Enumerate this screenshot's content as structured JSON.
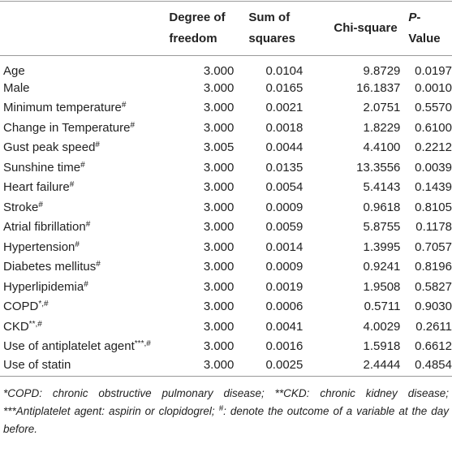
{
  "table": {
    "header": [
      "",
      "Degree of freedom",
      "Sum of squares",
      "Chi-square",
      "P-Value"
    ],
    "rows": [
      {
        "label": "Age",
        "sup": null,
        "values": [
          "3.000",
          "0.0104",
          "9.8729",
          "0.0197"
        ]
      },
      {
        "label": "Male",
        "sup": null,
        "values": [
          "3.000",
          "0.0165",
          "16.1837",
          "0.0010"
        ]
      },
      {
        "label": "Minimum temperature",
        "sup": "#",
        "values": [
          "3.000",
          "0.0021",
          "2.0751",
          "0.5570"
        ]
      },
      {
        "label": "Change in Temperature",
        "sup": "#",
        "values": [
          "3.000",
          "0.0018",
          "1.8229",
          "0.6100"
        ]
      },
      {
        "label": "Gust peak speed",
        "sup": "#",
        "values": [
          "3.005",
          "0.0044",
          "4.4100",
          "0.2212"
        ]
      },
      {
        "label": "Sunshine time",
        "sup": "#",
        "values": [
          "3.000",
          "0.0135",
          "13.3556",
          "0.0039"
        ]
      },
      {
        "label": "Heart failure",
        "sup": "#",
        "values": [
          "3.000",
          "0.0054",
          "5.4143",
          "0.1439"
        ]
      },
      {
        "label": "Stroke",
        "sup": "#",
        "values": [
          "3.000",
          "0.0009",
          "0.9618",
          "0.8105"
        ]
      },
      {
        "label": "Atrial fibrillation",
        "sup": "#",
        "values": [
          "3.000",
          "0.0059",
          "5.8755",
          "0.1178"
        ]
      },
      {
        "label": "Hypertension",
        "sup": "#",
        "values": [
          "3.000",
          "0.0014",
          "1.3995",
          "0.7057"
        ]
      },
      {
        "label": "Diabetes mellitus",
        "sup": "#",
        "values": [
          "3.000",
          "0.0009",
          "0.9241",
          "0.8196"
        ]
      },
      {
        "label": "Hyperlipidemia",
        "sup": "#",
        "values": [
          "3.000",
          "0.0019",
          "1.9508",
          "0.5827"
        ]
      },
      {
        "label": "COPD",
        "sup": "*,#",
        "values": [
          "3.000",
          "0.0006",
          "0.5711",
          "0.9030"
        ]
      },
      {
        "label": "CKD",
        "sup": "**,#",
        "values": [
          "3.000",
          "0.0041",
          "4.0029",
          "0.2611"
        ]
      },
      {
        "label": "Use of antiplatelet agent",
        "sup": "***,#",
        "values": [
          "3.000",
          "0.0016",
          "1.5918",
          "0.6612"
        ]
      },
      {
        "label": "Use of statin",
        "sup": null,
        "values": [
          "3.000",
          "0.0025",
          "2.4444",
          "0.4854"
        ]
      }
    ]
  },
  "footnote": {
    "text": "*COPD: chronic obstructive pulmonary disease; **CKD: chronic kidney disease; ***Antiplatelet agent: aspirin or clopidogrel; ",
    "sup": "#",
    "text2": ": denote the outcome of a variable at the day before."
  }
}
